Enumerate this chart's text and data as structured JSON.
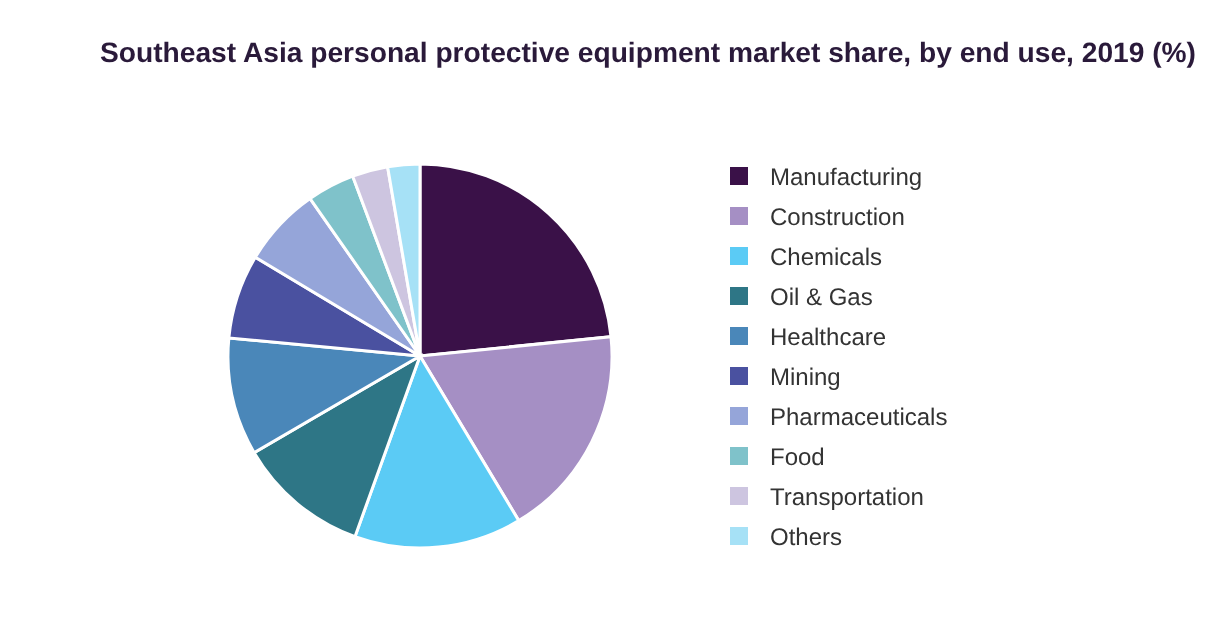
{
  "chart_data": {
    "type": "pie",
    "title": "Southeast Asia personal protective equipment market share, by end use, 2019 (%)",
    "categories": [
      "Manufacturing",
      "Construction",
      "Chemicals",
      "Oil & Gas",
      "Healthcare",
      "Mining",
      "Pharmaceuticals",
      "Food",
      "Transportation",
      "Others"
    ],
    "values": [
      23.4,
      18.0,
      14.1,
      11.1,
      9.9,
      7.1,
      6.7,
      4.0,
      3.0,
      2.7
    ],
    "colors": [
      "#3a1148",
      "#a58fc4",
      "#5bcbf5",
      "#2e7686",
      "#4a87b9",
      "#4a51a0",
      "#95a5d9",
      "#7fc2ca",
      "#cdc5e0",
      "#a6e1f6"
    ],
    "legend": "right"
  }
}
